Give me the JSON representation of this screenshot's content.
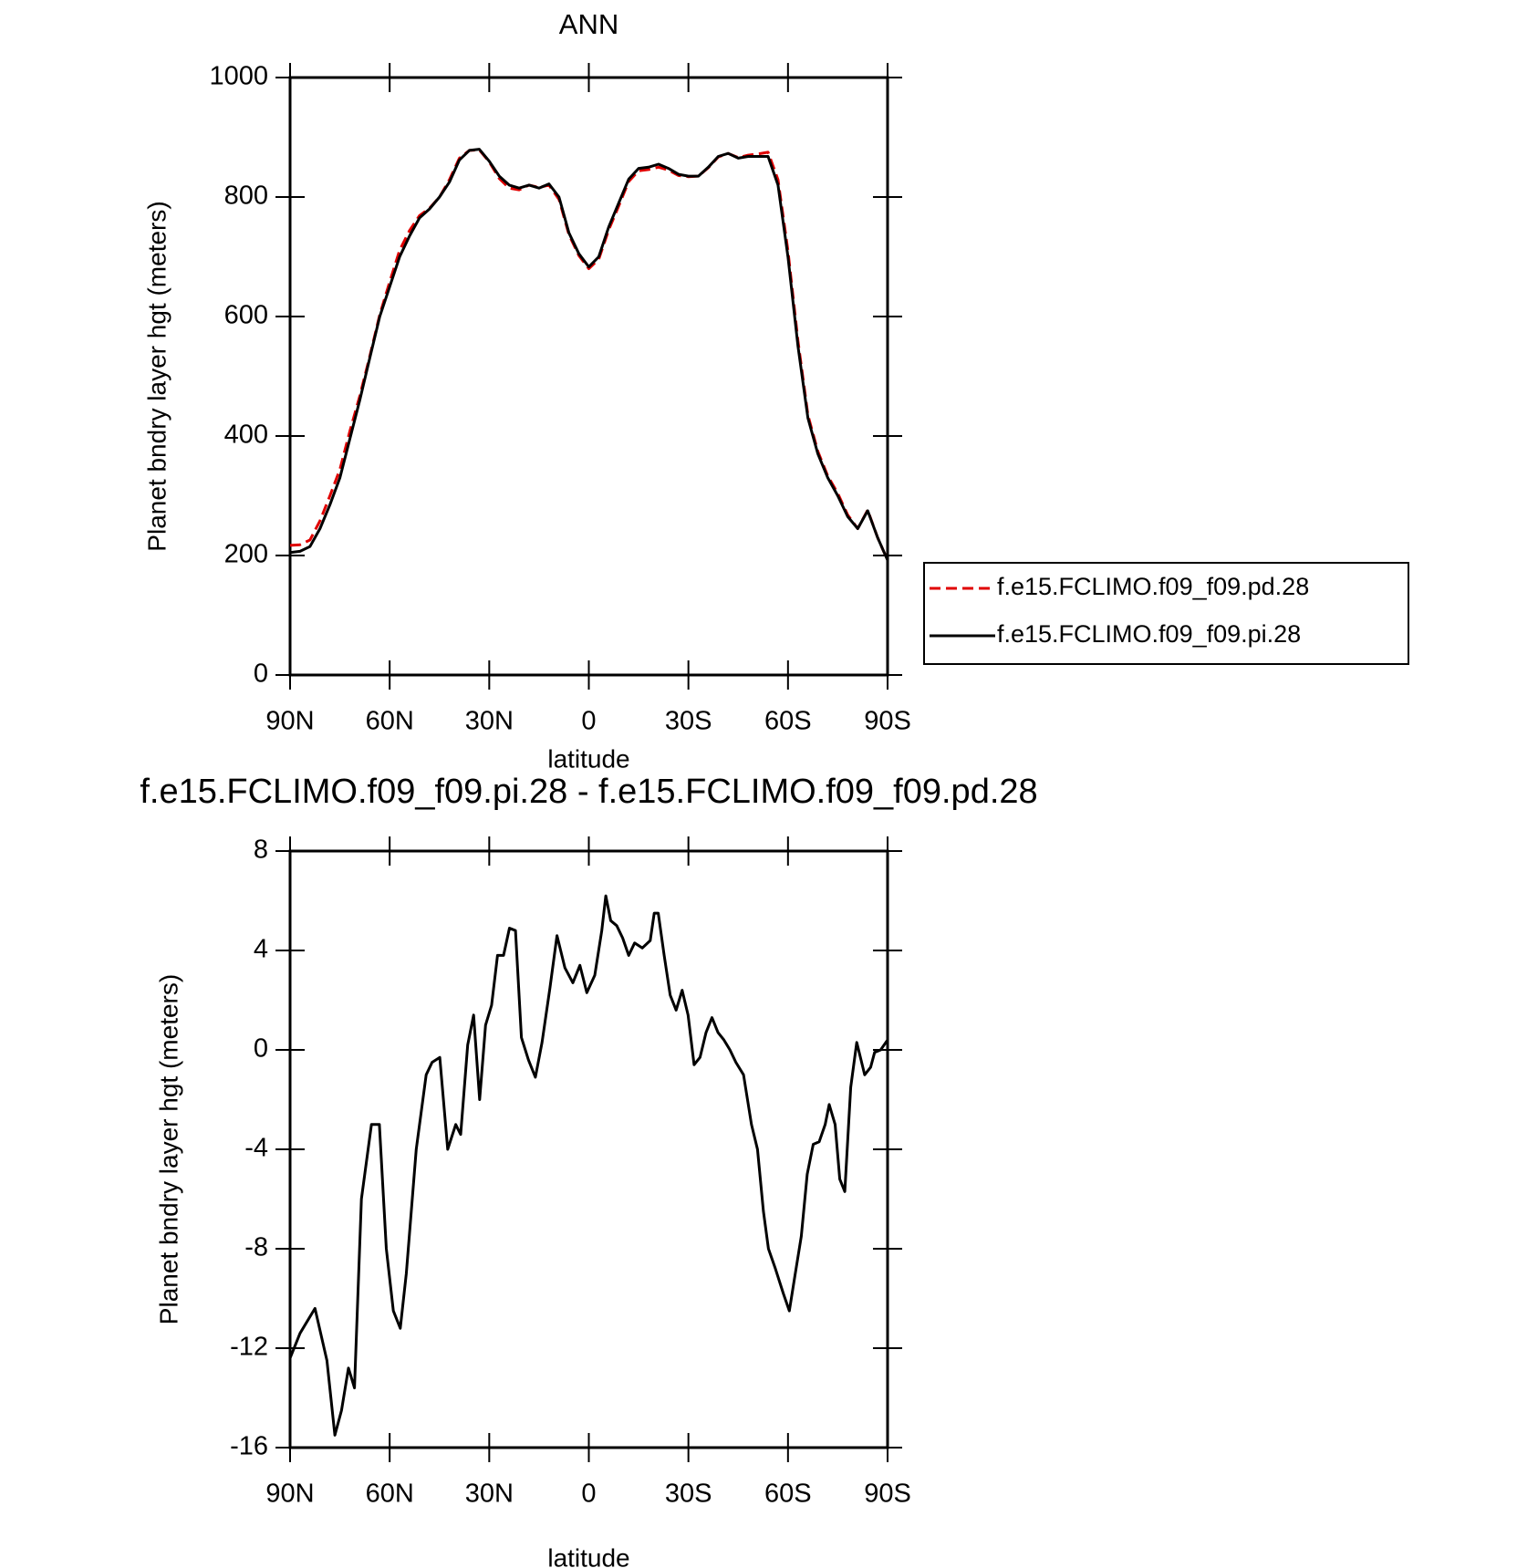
{
  "chart_data": [
    {
      "type": "line",
      "title": "ANN",
      "x_label": "latitude",
      "y_label": "Planet bndry layer hgt (meters)",
      "x": [
        90,
        87,
        84,
        81,
        78,
        75,
        72,
        69,
        66,
        63,
        60,
        57,
        54,
        51,
        48,
        45,
        42,
        39,
        36,
        33,
        30,
        27,
        24,
        21,
        18,
        15,
        12,
        9,
        6,
        3,
        0,
        -3,
        -6,
        -9,
        -12,
        -15,
        -18,
        -21,
        -24,
        -27,
        -30,
        -33,
        -36,
        -39,
        -42,
        -45,
        -48,
        -51,
        -54,
        -57,
        -60,
        -63,
        -66,
        -69,
        -72,
        -75,
        -78,
        -81,
        -84,
        -87,
        -90
      ],
      "series": [
        {
          "name": "f.e15.FCLIMO.f09_f09.pd.28",
          "color": "#e00000",
          "linestyle": "dashed",
          "values": [
            217,
            218,
            226,
            258,
            300,
            344,
            408,
            467,
            533,
            603,
            658,
            711,
            744,
            769,
            781,
            800,
            829,
            865,
            878,
            879,
            859,
            831,
            815,
            812,
            820,
            816,
            820,
            796,
            737,
            702,
            680,
            696,
            745,
            785,
            826,
            844,
            846,
            850,
            845,
            836,
            834,
            835,
            849,
            867,
            873,
            866,
            870,
            872,
            875,
            829,
            710,
            559,
            435,
            374,
            333,
            304,
            268,
            245,
            276,
            230,
            192
          ]
        },
        {
          "name": "f.e15.FCLIMO.f09_f09.pi.28",
          "color": "#000000",
          "linestyle": "solid",
          "values": [
            205,
            207,
            215,
            245,
            285,
            330,
            395,
            460,
            530,
            600,
            650,
            700,
            735,
            765,
            780,
            800,
            825,
            862,
            878,
            880,
            860,
            835,
            820,
            815,
            820,
            815,
            822,
            800,
            740,
            705,
            683,
            700,
            750,
            790,
            830,
            848,
            850,
            855,
            848,
            838,
            835,
            835,
            850,
            868,
            873,
            865,
            868,
            868,
            868,
            820,
            700,
            550,
            430,
            370,
            330,
            300,
            265,
            245,
            275,
            230,
            192
          ]
        }
      ],
      "xlim": [
        90,
        -90
      ],
      "xticks": [
        {
          "value": 90,
          "label": "90N"
        },
        {
          "value": 60,
          "label": "60N"
        },
        {
          "value": 30,
          "label": "30N"
        },
        0,
        {
          "value": -30,
          "label": "30S"
        },
        {
          "value": -60,
          "label": "60S"
        },
        {
          "value": -90,
          "label": "90S"
        }
      ],
      "ylim": [
        0,
        1000
      ],
      "yticks": [
        0,
        200,
        400,
        600,
        800,
        1000
      ],
      "legend": "right"
    },
    {
      "type": "line",
      "title": "f.e15.FCLIMO.f09_f09.pi.28 - f.e15.FCLIMO.f09_f09.pd.28",
      "x_label": "latitude",
      "y_label": "Planet bndry layer hgt (meters)",
      "x": [
        90,
        87,
        82.5,
        78.9,
        76.5,
        74.5,
        72.4,
        70.6,
        68.5,
        65.5,
        63.1,
        61,
        58.9,
        56.8,
        55,
        52,
        49,
        47.2,
        44.9,
        42.5,
        40.1,
        38.6,
        36.5,
        34.7,
        32.9,
        31.1,
        29.3,
        27.5,
        25.7,
        23.9,
        22.1,
        20.3,
        18.2,
        16.1,
        14.1,
        11.7,
        9.6,
        7.2,
        4.8,
        2.7,
        0.6,
        -1.8,
        -3.9,
        -5.1,
        -6.6,
        -8.4,
        -10.2,
        -12,
        -13.8,
        -16.1,
        -18.5,
        -19.7,
        -20.9,
        -22.7,
        -24.5,
        -26.3,
        -28.1,
        -29.9,
        -31.7,
        -33.5,
        -35.3,
        -37.1,
        -38.9,
        -40.7,
        -42.5,
        -44.3,
        -46.6,
        -49,
        -50.8,
        -52.6,
        -54.1,
        -56.2,
        -58.6,
        -60.4,
        -62.2,
        -64,
        -65.8,
        -67.6,
        -69.4,
        -71.2,
        -72.4,
        -74.2,
        -75.6,
        -77.1,
        -78.9,
        -80.7,
        -83.1,
        -84.9,
        -86.1,
        -87.9,
        -90
      ],
      "values": [
        -12.4,
        -11.4,
        -10.4,
        -12.5,
        -15.5,
        -14.5,
        -12.8,
        -13.6,
        -6,
        -3,
        -3,
        -8,
        -10.5,
        -11.2,
        -9,
        -4,
        -1,
        -0.5,
        -0.3,
        -4,
        -3,
        -3.4,
        0.2,
        1.4,
        -2,
        1,
        1.8,
        3.8,
        3.8,
        4.9,
        4.8,
        0.5,
        -0.4,
        -1.1,
        0.3,
        2.5,
        4.6,
        3.3,
        2.7,
        3.4,
        2.3,
        3,
        4.8,
        6.2,
        5.2,
        5,
        4.5,
        3.8,
        4.3,
        4.1,
        4.4,
        5.5,
        5.5,
        3.8,
        2.2,
        1.6,
        2.4,
        1.4,
        -0.6,
        -0.3,
        0.7,
        1.3,
        0.7,
        0.4,
        0,
        -0.5,
        -1,
        -3,
        -4,
        -6.5,
        -8,
        -8.8,
        -9.8,
        -10.5,
        -9,
        -7.5,
        -5,
        -3.8,
        -3.7,
        -3,
        -2.2,
        -3,
        -5.2,
        -5.7,
        -1.5,
        0.3,
        -1,
        -0.7,
        -0.1,
        0,
        0.4
      ],
      "color": "#000000",
      "xlim": [
        90,
        -90
      ],
      "xticks": [
        {
          "value": 90,
          "label": "90N"
        },
        {
          "value": 60,
          "label": "60N"
        },
        {
          "value": 30,
          "label": "30N"
        },
        0,
        {
          "value": -30,
          "label": "30S"
        },
        {
          "value": -60,
          "label": "60S"
        },
        {
          "value": -90,
          "label": "90S"
        }
      ],
      "ylim": [
        -16,
        8
      ],
      "yticks": [
        -16,
        -12,
        -8,
        -4,
        0,
        4,
        8
      ]
    }
  ]
}
